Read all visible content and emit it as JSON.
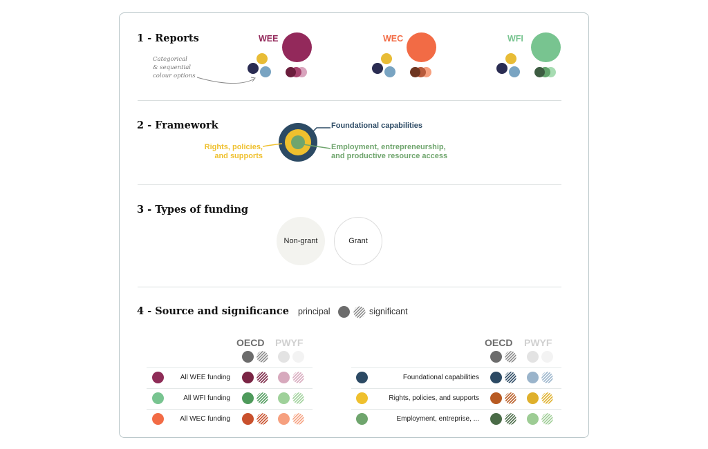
{
  "sections": {
    "reports": {
      "title": "1 - Reports"
    },
    "framework": {
      "title": "2 - Framework"
    },
    "funding": {
      "title": "3 - Types of funding"
    },
    "source": {
      "title": "4 - Source and significance"
    }
  },
  "reports": {
    "note": [
      "Categorical",
      "& sequential",
      "colour options"
    ],
    "items": [
      {
        "label": "WEE",
        "color": "#93295b",
        "sequential": [
          "#6b1d3c",
          "#a8456f",
          "#d9a4bd"
        ]
      },
      {
        "label": "WEC",
        "color": "#f26b45",
        "sequential": [
          "#6e3520",
          "#b85a3b",
          "#f6a07f"
        ]
      },
      {
        "label": "WFI",
        "color": "#78c490",
        "sequential": [
          "#3d5c41",
          "#63a46d",
          "#a7dcb2"
        ]
      }
    ],
    "categorical": [
      "#2a2c52",
      "#e8bc36",
      "#79a4c2"
    ]
  },
  "framework": {
    "outer_label": "Foundational capabilities",
    "middle_label": [
      "Rights, policies,",
      "and supports"
    ],
    "inner_label": [
      "Employment, entrepreneurship,",
      "and productive resource access"
    ],
    "colors": {
      "outer": "#2c4a64",
      "middle": "#efc02e",
      "inner": "#6fa56d"
    }
  },
  "funding": {
    "non_grant": "Non-grant",
    "grant": "Grant"
  },
  "source": {
    "legend_principal": "principal",
    "legend_significant": "significant",
    "col_oecd": "OECD",
    "col_pwyf": "PWYF",
    "left_rows": [
      {
        "label": "All WEE funding",
        "key": "#8e2c57",
        "oecd": "#7a2444",
        "pwyf": "#d7a9bd"
      },
      {
        "label": "All WFI funding",
        "key": "#78c490",
        "oecd": "#4e9a5b",
        "pwyf": "#9fd19a"
      },
      {
        "label": "All WEC funding",
        "key": "#f26b45",
        "oecd": "#c9502c",
        "pwyf": "#f6a07f"
      }
    ],
    "right_rows": [
      {
        "label": "Foundational capabilities",
        "key": "#2c4a64",
        "oecd": "#2c4a64",
        "pwyf": "#9ab4cb"
      },
      {
        "label": "Rights, policies, and supports",
        "key": "#efc02e",
        "oecd": "#b85a22",
        "pwyf": "#dfb02c"
      },
      {
        "label": "Employment, entreprise, ...",
        "key": "#6fa56d",
        "oecd": "#4a6b47",
        "pwyf": "#9dcc94"
      }
    ],
    "header_principal": "#6c6c6c",
    "pwyf_header": "#e3e3e3"
  }
}
